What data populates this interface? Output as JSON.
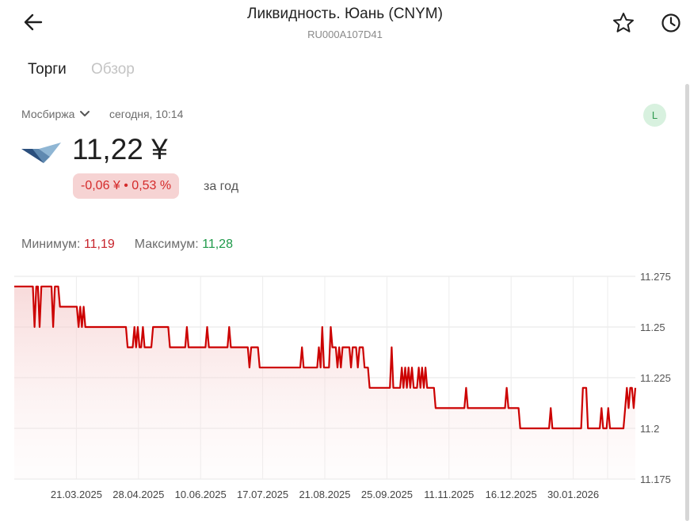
{
  "header": {
    "title": "Ликвидность. Юань (CNYM)",
    "isin": "RU000A107D41"
  },
  "tabs": [
    {
      "label": "Торги",
      "active": true
    },
    {
      "label": "Обзор",
      "active": false
    }
  ],
  "quote": {
    "exchange": "Мосбиржа",
    "time": "сегодня, 10:14",
    "level_badge": "L",
    "price": "11,22 ¥",
    "change": "-0,06 ¥ • 0,53 %",
    "period": "за год"
  },
  "range": {
    "min_label": "Минимум:",
    "min_value": "11,19",
    "max_label": "Максимум:",
    "max_value": "11,28"
  },
  "colors": {
    "line": "#cc0000",
    "negative": "#d42a2a",
    "positive": "#1f9a4a",
    "badge_bg": "#f6d3d3"
  },
  "chart_data": {
    "type": "line",
    "y_ticks": [
      "11.275",
      "11.25",
      "11.225",
      "11.2",
      "11.175"
    ],
    "y_values": [
      11.275,
      11.25,
      11.225,
      11.2,
      11.175
    ],
    "ylim": [
      11.175,
      11.28
    ],
    "x_ticks": [
      "21.03.2025",
      "28.04.2025",
      "10.06.2025",
      "17.07.2025",
      "21.08.2025",
      "25.09.2025",
      "11.11.2025",
      "16.12.2025",
      "30.01.2026"
    ],
    "x_tick_pos": [
      0.1,
      0.2,
      0.3,
      0.4,
      0.5,
      0.6,
      0.7,
      0.8,
      0.9
    ],
    "grid": true,
    "series": [
      {
        "values": [
          11.27,
          11.27,
          11.27,
          11.27,
          11.27,
          11.27,
          11.27,
          11.27,
          11.27,
          11.27,
          11.27,
          11.27,
          11.25,
          11.27,
          11.27,
          11.25,
          11.27,
          11.27,
          11.27,
          11.27,
          11.27,
          11.27,
          11.27,
          11.25,
          11.27,
          11.27,
          11.27,
          11.26,
          11.26,
          11.26,
          11.26,
          11.26,
          11.26,
          11.26,
          11.26,
          11.26,
          11.26,
          11.26,
          11.25,
          11.26,
          11.25,
          11.26,
          11.25,
          11.25,
          11.25,
          11.25,
          11.25,
          11.25,
          11.25,
          11.25,
          11.25,
          11.25,
          11.25,
          11.25,
          11.25,
          11.25,
          11.25,
          11.25,
          11.25,
          11.25,
          11.25,
          11.25,
          11.25,
          11.25,
          11.25,
          11.25,
          11.25,
          11.24,
          11.24,
          11.24,
          11.24,
          11.25,
          11.24,
          11.25,
          11.24,
          11.24,
          11.25,
          11.24,
          11.24,
          11.24,
          11.24,
          11.24,
          11.25,
          11.25,
          11.25,
          11.25,
          11.25,
          11.25,
          11.25,
          11.25,
          11.25,
          11.25,
          11.24,
          11.24,
          11.24,
          11.24,
          11.24,
          11.24,
          11.24,
          11.24,
          11.24,
          11.24,
          11.25,
          11.24,
          11.24,
          11.24,
          11.24,
          11.24,
          11.24,
          11.24,
          11.24,
          11.24,
          11.24,
          11.24,
          11.25,
          11.24,
          11.24,
          11.24,
          11.24,
          11.24,
          11.24,
          11.24,
          11.24,
          11.24,
          11.24,
          11.24,
          11.24,
          11.25,
          11.24,
          11.24,
          11.24,
          11.24,
          11.24,
          11.24,
          11.24,
          11.24,
          11.24,
          11.24,
          11.24,
          11.23,
          11.24,
          11.24,
          11.24,
          11.24,
          11.24,
          11.23,
          11.23,
          11.23,
          11.23,
          11.23,
          11.23,
          11.23,
          11.23,
          11.23,
          11.23,
          11.23,
          11.23,
          11.23,
          11.23,
          11.23,
          11.23,
          11.23,
          11.23,
          11.23,
          11.23,
          11.23,
          11.23,
          11.23,
          11.23,
          11.23,
          11.24,
          11.23,
          11.23,
          11.23,
          11.23,
          11.23,
          11.23,
          11.23,
          11.23,
          11.23,
          11.24,
          11.23,
          11.25,
          11.23,
          11.23,
          11.23,
          11.23,
          11.25,
          11.24,
          11.24,
          11.24,
          11.23,
          11.24,
          11.23,
          11.24,
          11.24,
          11.24,
          11.24,
          11.24,
          11.23,
          11.24,
          11.24,
          11.24,
          11.23,
          11.24,
          11.24,
          11.24,
          11.23,
          11.23,
          11.23,
          11.22,
          11.22,
          11.22,
          11.22,
          11.22,
          11.22,
          11.22,
          11.22,
          11.22,
          11.22,
          11.22,
          11.22,
          11.22,
          11.24,
          11.22,
          11.22,
          11.22,
          11.22,
          11.22,
          11.23,
          11.22,
          11.23,
          11.22,
          11.23,
          11.22,
          11.23,
          11.22,
          11.22,
          11.22,
          11.23,
          11.22,
          11.23,
          11.22,
          11.23,
          11.22,
          11.22,
          11.22,
          11.22,
          11.22,
          11.21,
          11.21,
          11.21,
          11.21,
          11.21,
          11.21,
          11.21,
          11.21,
          11.21,
          11.21,
          11.21,
          11.21,
          11.21,
          11.21,
          11.21,
          11.21,
          11.21,
          11.21,
          11.22,
          11.21,
          11.21,
          11.21,
          11.21,
          11.21,
          11.21,
          11.21,
          11.21,
          11.21,
          11.21,
          11.21,
          11.21,
          11.21,
          11.21,
          11.21,
          11.21,
          11.21,
          11.21,
          11.21,
          11.21,
          11.21,
          11.21,
          11.21,
          11.22,
          11.21,
          11.21,
          11.21,
          11.21,
          11.21,
          11.21,
          11.21,
          11.2,
          11.2,
          11.2,
          11.2,
          11.2,
          11.2,
          11.2,
          11.2,
          11.2,
          11.2,
          11.2,
          11.2,
          11.2,
          11.2,
          11.2,
          11.2,
          11.2,
          11.2,
          11.21,
          11.2,
          11.2,
          11.2,
          11.2,
          11.2,
          11.2,
          11.2,
          11.2,
          11.2,
          11.2,
          11.2,
          11.2,
          11.2,
          11.2,
          11.2,
          11.2,
          11.2,
          11.2,
          11.22,
          11.22,
          11.22,
          11.2,
          11.2,
          11.2,
          11.2,
          11.2,
          11.2,
          11.2,
          11.2,
          11.21,
          11.2,
          11.2,
          11.2,
          11.21,
          11.2,
          11.2,
          11.2,
          11.2,
          11.2,
          11.2,
          11.2,
          11.2,
          11.2,
          11.21,
          11.22,
          11.21,
          11.22,
          11.22,
          11.21,
          11.22
        ]
      }
    ]
  }
}
